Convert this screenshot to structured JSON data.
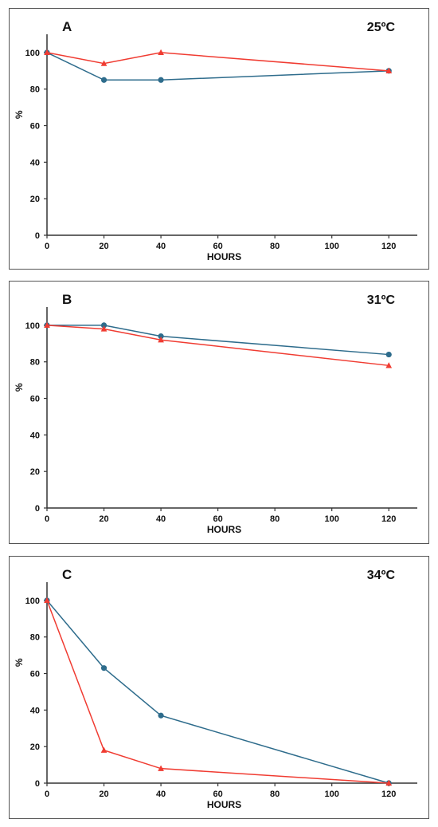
{
  "colors": {
    "blue_series": "#2E6C8C",
    "red_series": "#F03C32",
    "axis": "#333333"
  },
  "chart_data": [
    {
      "type": "line",
      "panel_label": "A",
      "title": "25ºC",
      "xlabel": "HOURS",
      "ylabel": "%",
      "xlim": [
        0,
        130
      ],
      "ylim": [
        0,
        110
      ],
      "x_ticks": [
        0,
        20,
        40,
        60,
        80,
        100,
        120
      ],
      "y_ticks": [
        0,
        20,
        40,
        60,
        80,
        100
      ],
      "grid": false,
      "series": [
        {
          "marker": "circle",
          "color": "#2E6C8C",
          "x": [
            0,
            20,
            40,
            120
          ],
          "y": [
            100,
            85,
            85,
            90
          ]
        },
        {
          "marker": "triangle",
          "color": "#F03C32",
          "x": [
            0,
            20,
            40,
            120
          ],
          "y": [
            100,
            94,
            100,
            90
          ]
        }
      ]
    },
    {
      "type": "line",
      "panel_label": "B",
      "title": "31ºC",
      "xlabel": "HOURS",
      "ylabel": "%",
      "xlim": [
        0,
        130
      ],
      "ylim": [
        0,
        110
      ],
      "x_ticks": [
        0,
        20,
        40,
        60,
        80,
        100,
        120
      ],
      "y_ticks": [
        0,
        20,
        40,
        60,
        80,
        100
      ],
      "grid": false,
      "series": [
        {
          "marker": "circle",
          "color": "#2E6C8C",
          "x": [
            0,
            20,
            40,
            120
          ],
          "y": [
            100,
            100,
            94,
            84
          ]
        },
        {
          "marker": "triangle",
          "color": "#F03C32",
          "x": [
            0,
            20,
            40,
            120
          ],
          "y": [
            100,
            98,
            92,
            78
          ]
        }
      ]
    },
    {
      "type": "line",
      "panel_label": "C",
      "title": "34ºC",
      "xlabel": "HOURS",
      "ylabel": "%",
      "xlim": [
        0,
        130
      ],
      "ylim": [
        0,
        110
      ],
      "x_ticks": [
        0,
        20,
        40,
        60,
        80,
        100,
        120
      ],
      "y_ticks": [
        0,
        20,
        40,
        60,
        80,
        100
      ],
      "grid": false,
      "series": [
        {
          "marker": "circle",
          "color": "#2E6C8C",
          "x": [
            0,
            20,
            40,
            120
          ],
          "y": [
            100,
            63,
            37,
            0
          ]
        },
        {
          "marker": "triangle",
          "color": "#F03C32",
          "x": [
            0,
            20,
            40,
            120
          ],
          "y": [
            100,
            18,
            8,
            0
          ]
        }
      ]
    }
  ]
}
